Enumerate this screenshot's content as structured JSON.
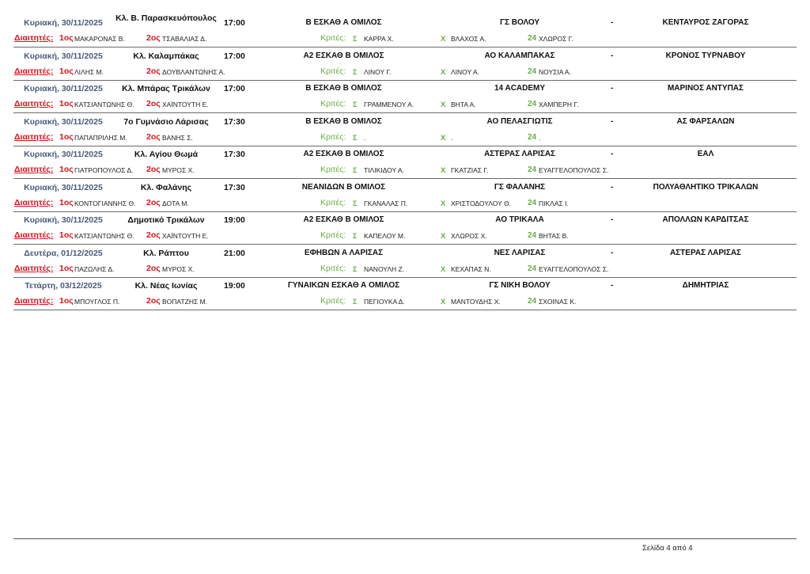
{
  "labels": {
    "referees": "Διαιτητές:",
    "first": "1ος",
    "second": "2ος",
    "judges": "Κριτές:",
    "scorer": "Σ",
    "timer": "Χ",
    "shotclock": "24",
    "dash": "-"
  },
  "matches": [
    {
      "date": "Κυριακή, 30/11/2025",
      "venue": "Κλ. Β. Παρασκευόπουλος",
      "time": "17:00",
      "category": "Β ΕΣΚΑΘ Α ΟΜΙΛΟΣ",
      "home": "ΓΣ ΒΟΛΟΥ",
      "away": "ΚΕΝΤΑΥΡΟΣ ΖΑΓΟΡΑΣ",
      "ref1": "ΜΑΚΑΡΟΝΑΣ Β.",
      "ref2": "ΤΣΑΒΑΛΙΑΣ Δ.",
      "scorer": "ΚΑΡΡΑ Χ.",
      "timer": "ΒΛΑΧΟΣ Α.",
      "shotclock": "ΧΛΩΡΟΣ Γ."
    },
    {
      "date": "Κυριακή, 30/11/2025",
      "venue": "Κλ. Καλαμπάκας",
      "time": "17:00",
      "category": "Α2 ΕΣΚΑΘ Β ΟΜΙΛΟΣ",
      "home": "ΑΟ ΚΑΛΑΜΠΑΚΑΣ",
      "away": "ΚΡΟΝΟΣ ΤΥΡΝΑΒΟΥ",
      "ref1": "ΛΙΛΗΣ Μ.",
      "ref2": "ΔΟΥΒΛΑΝΤΩΝΗΣ Α.",
      "scorer": "ΛΙΝΟΥ Γ.",
      "timer": "ΛΙΝΟΥ Α.",
      "shotclock": "ΝΟΥΣΙΑ Α."
    },
    {
      "date": "Κυριακή, 30/11/2025",
      "venue": "Κλ. Μπάρας Τρικάλων",
      "time": "17:00",
      "category": "Β ΕΣΚΑΘ Β ΟΜΙΛΟΣ",
      "home": "14 ACADEMY",
      "away": "ΜΑΡΙΝΟΣ ΑΝΤΥΠΑΣ",
      "ref1": "ΚΑΤΣΙΑΝΤΩΝΗΣ Θ.",
      "ref2": "ΧΑΪΝΤΟΥΤΗ Ε.",
      "scorer": "ΓΡΑΜΜΕΝΟΥ Α.",
      "timer": "ΒΗΤΑ Α.",
      "shotclock": "ΧΑΜΠΕΡΗ Γ."
    },
    {
      "date": "Κυριακή, 30/11/2025",
      "venue": "7ο Γυμνάσιο Λάρισας",
      "time": "17:30",
      "category": "Β ΕΣΚΑΘ Β ΟΜΙΛΟΣ",
      "home": "ΑΟ ΠΕΛΑΣΓΙΩΤΙΣ",
      "away": "ΑΣ ΦΑΡΣΑΛΩΝ",
      "ref1": "ΠΑΠΑΠΡΙΛΗΣ Μ.",
      "ref2": "ΒΑΝΗΣ Σ.",
      "scorer": ".",
      "timer": ".",
      "shotclock": "."
    },
    {
      "date": "Κυριακή, 30/11/2025",
      "venue": "Κλ. Αγίου Θωμά",
      "time": "17:30",
      "category": "Α2 ΕΣΚΑΘ Β ΟΜΙΛΟΣ",
      "home": "ΑΣΤΕΡΑΣ ΛΑΡΙΣΑΣ",
      "away": "ΕΑΛ",
      "ref1": "ΓΙΑΤΡΟΠΟΥΛΟΣ Δ.",
      "ref2": "ΜΥΡΟΣ Χ.",
      "scorer": "ΤΙΛΙΚΙΔΟΥ Α.",
      "timer": "ΓΚΑΤΖΙΑΣ Γ.",
      "shotclock": "ΕΥΑΓΓΕΛΟΠΟΥΛΟΣ Σ."
    },
    {
      "date": "Κυριακή, 30/11/2025",
      "venue": "Κλ. Φαλάνης",
      "time": "17:30",
      "category": "ΝΕΑΝΙΔΩΝ Β ΟΜΙΛΟΣ",
      "home": "ΓΣ ΦΑΛΑΝΗΣ",
      "away": "ΠΟΛΥΑΘΛΗΤΙΚΟ ΤΡΙΚΑΛΩΝ",
      "ref1": "ΚΟΝΤΟΓΙΑΝΝΗΣ Θ.",
      "ref2": "ΔΟΤΑ Μ.",
      "scorer": "ΓΚΑΝΑΛΑΣ Π.",
      "timer": "ΧΡΙΣΤΟΔΟΥΛΟΥ Θ.",
      "shotclock": "ΠΙΚΛΑΣ Ι."
    },
    {
      "date": "Κυριακή, 30/11/2025",
      "venue": "Δημοτικό Τρικάλων",
      "time": "19:00",
      "category": "Α2 ΕΣΚΑΘ Β ΟΜΙΛΟΣ",
      "home": "ΑΟ ΤΡΙΚΑΛΑ",
      "away": "ΑΠΟΛΛΩΝ ΚΑΡΔΙΤΣΑΣ",
      "ref1": "ΚΑΤΣΙΑΝΤΩΝΗΣ Θ.",
      "ref2": "ΧΑΪΝΤΟΥΤΗ Ε.",
      "scorer": "ΚΑΠΕΛΟΥ Μ.",
      "timer": "ΧΛΩΡΟΣ Χ.",
      "shotclock": "ΒΗΤΑΣ Β."
    },
    {
      "date": "Δευτέρα, 01/12/2025",
      "venue": "Κλ. Ράπτου",
      "time": "21:00",
      "category": "ΕΦΗΒΩΝ Α ΛΑΡΙΣΑΣ",
      "home": "ΝΕΣ ΛΑΡΙΣΑΣ",
      "away": "ΑΣΤΕΡΑΣ ΛΑΡΙΣΑΣ",
      "ref1": "ΠΑΖΩΛΗΣ Δ.",
      "ref2": "ΜΥΡΟΣ Χ.",
      "scorer": "ΝΑΝΟΥΛΗ Ζ.",
      "timer": "ΚΕΧΑΠΑΣ Ν.",
      "shotclock": "ΕΥΑΓΓΕΛΟΠΟΥΛΟΣ Σ."
    },
    {
      "date": "Τετάρτη, 03/12/2025",
      "venue": "Κλ. Νέας Ιωνίας",
      "time": "19:00",
      "category": "ΓΥΝΑΙΚΩΝ ΕΣΚΑΘ Α ΟΜΙΛΟΣ",
      "home": "ΓΣ ΝΙΚΗ ΒΟΛΟΥ",
      "away": "ΔΗΜΗΤΡΙΑΣ",
      "ref1": "ΜΠΟΥΓΛΟΣ Π.",
      "ref2": "ΒΟΠΑΤΖΗΣ Μ.",
      "scorer": "ΠΕΓΙΟΥΚΑ Δ.",
      "timer": "ΜΑΝΤΟΥΔΗΣ Χ.",
      "shotclock": "ΣΧΟΙΝΑΣ Κ."
    }
  ],
  "footer": {
    "page": "Σελίδα 4 από 4"
  }
}
